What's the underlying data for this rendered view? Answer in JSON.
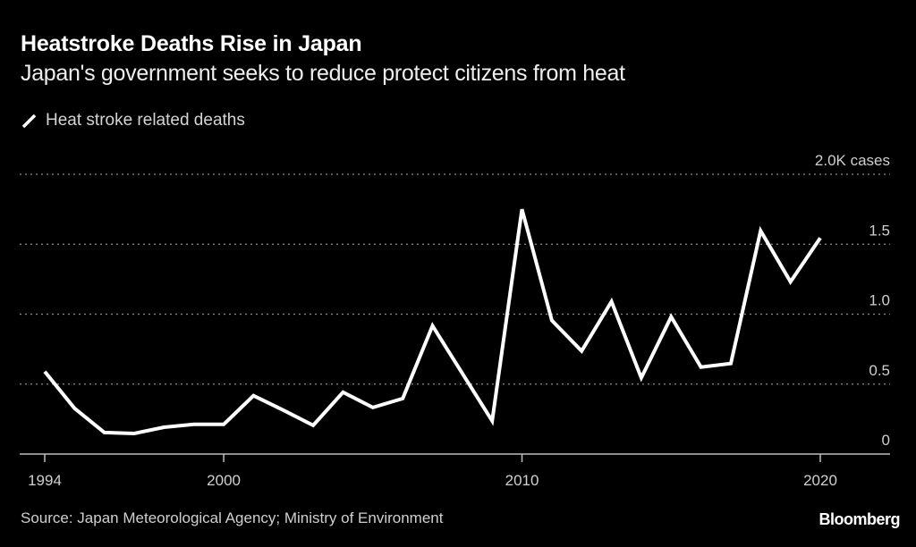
{
  "header": {
    "title": "Heatstroke Deaths Rise in Japan",
    "subtitle": "Japan's government seeks to reduce protect citizens from heat"
  },
  "legend": {
    "label": "Heat stroke related deaths",
    "icon": "line-swatch-icon"
  },
  "footer": {
    "source": "Source: Japan Meteorological Agency; Ministry of Environment",
    "brand": "Bloomberg"
  },
  "colors": {
    "background": "#000000",
    "line": "#ffffff",
    "grid": "#8a8a8a",
    "text": "#cfcfcf"
  },
  "chart_data": {
    "type": "line",
    "title": "Heatstroke Deaths Rise in Japan",
    "subtitle": "Japan's government seeks to reduce protect citizens from heat",
    "xlabel": "",
    "ylabel": "cases",
    "x": [
      1994,
      1995,
      1996,
      1997,
      1998,
      1999,
      2000,
      2001,
      2002,
      2003,
      2004,
      2005,
      2006,
      2007,
      2008,
      2009,
      2010,
      2011,
      2012,
      2013,
      2014,
      2015,
      2016,
      2017,
      2018,
      2019,
      2020
    ],
    "series": [
      {
        "name": "Heat stroke related deaths",
        "values": [
          590,
          327,
          154,
          147,
          192,
          212,
          212,
          417,
          314,
          205,
          442,
          333,
          397,
          917,
          577,
          237,
          1750,
          955,
          737,
          1090,
          545,
          981,
          622,
          647,
          1596,
          1231,
          1545
        ]
      }
    ],
    "xlim": [
      1993.2,
      2021.3
    ],
    "ylim": [
      0,
      2000
    ],
    "x_ticks": [
      1994,
      2000,
      2010,
      2020
    ],
    "x_tick_labels": [
      "1994",
      "2000",
      "2010",
      "2020"
    ],
    "y_ticks": [
      0,
      500,
      1000,
      1500,
      2000
    ],
    "y_tick_labels": [
      "0",
      "0.5",
      "1.0",
      "1.5",
      "2.0K cases"
    ],
    "grid": true,
    "legend_position": "top-left"
  }
}
